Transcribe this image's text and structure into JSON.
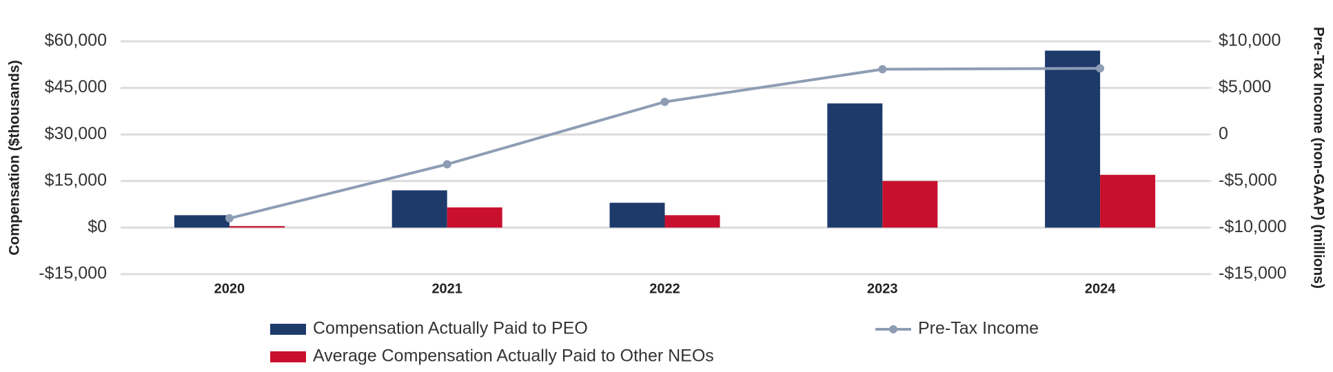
{
  "chart_data": {
    "type": "bar-line",
    "y_label": "Compensation ($thousands)",
    "y2_label": "Pre-Tax Income (non-GAAP) (millions)",
    "categories": [
      "2020",
      "2021",
      "2022",
      "2023",
      "2024"
    ],
    "series": [
      {
        "name": "Compensation Actually Paid to PEO",
        "type": "bar",
        "color": "#1d3a6b",
        "values": [
          4000,
          12000,
          8000,
          40000,
          57000
        ]
      },
      {
        "name": "Average Compensation Actually Paid to Other NEOs",
        "type": "bar",
        "color": "#c8102e",
        "values": [
          500,
          6500,
          4000,
          15000,
          17000
        ]
      },
      {
        "name": "Pre-Tax Income",
        "type": "line",
        "axis": "y2",
        "color": "#8e9db4",
        "values": [
          -9000,
          -3200,
          3500,
          7000,
          7100
        ]
      }
    ],
    "ylim": [
      -15000,
      60000
    ],
    "yticks": [
      {
        "value": -15000,
        "label": "-$15,000"
      },
      {
        "value": 0,
        "label": "$0"
      },
      {
        "value": 15000,
        "label": "$15,000"
      },
      {
        "value": 30000,
        "label": "$30,000"
      },
      {
        "value": 45000,
        "label": "$45,000"
      },
      {
        "value": 60000,
        "label": "$60,000"
      }
    ],
    "y2lim": [
      -15000,
      10000
    ],
    "y2ticks": [
      {
        "value": -15000,
        "label": "-$15,000"
      },
      {
        "value": -10000,
        "label": "-$10,000"
      },
      {
        "value": -5000,
        "label": "-$5,000"
      },
      0,
      {
        "value": 5000,
        "label": "$5,000"
      },
      {
        "value": 10000,
        "label": "$10,000"
      }
    ],
    "grid": true
  }
}
